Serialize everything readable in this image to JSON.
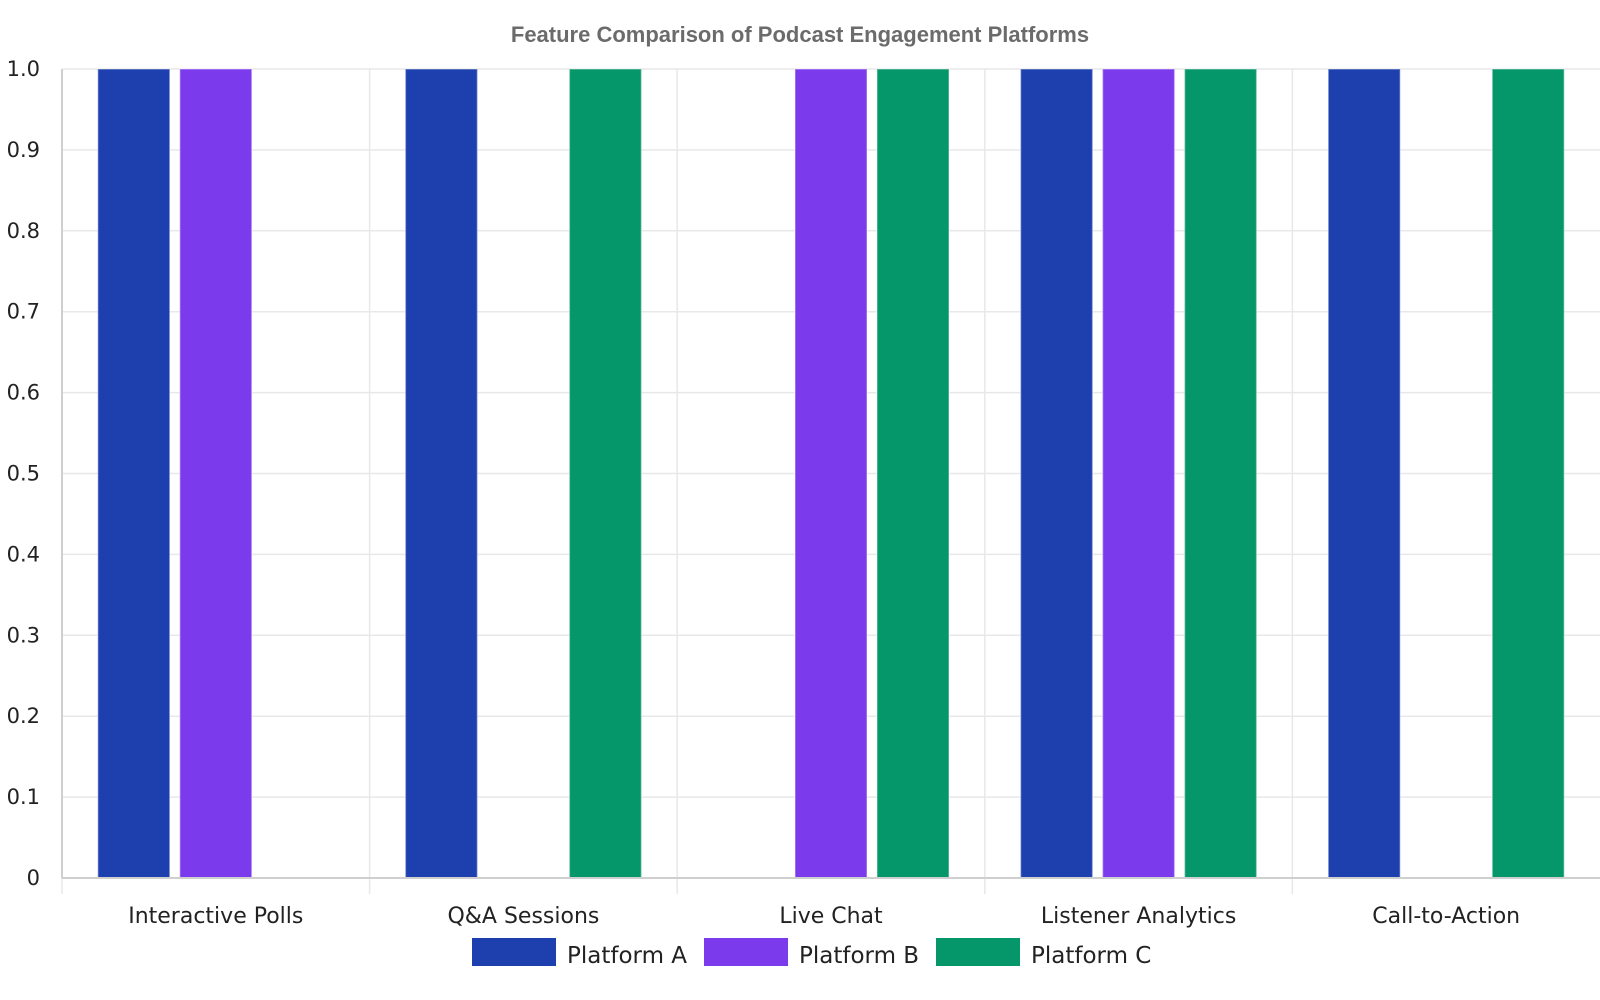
{
  "chart_data": {
    "type": "bar",
    "title": "Feature Comparison of Podcast Engagement Platforms",
    "xlabel": "",
    "ylabel": "",
    "ylim": [
      0,
      1
    ],
    "yticks": [
      "0",
      "0.1",
      "0.2",
      "0.3",
      "0.4",
      "0.5",
      "0.6",
      "0.7",
      "0.8",
      "0.9",
      "1.0"
    ],
    "grid": true,
    "legend_position": "bottom",
    "categories": [
      "Interactive Polls",
      "Q&A Sessions",
      "Live Chat",
      "Listener Analytics",
      "Call-to-Action"
    ],
    "series": [
      {
        "name": "Platform A",
        "color": "#1e40af",
        "values": [
          1,
          1,
          0,
          1,
          1
        ]
      },
      {
        "name": "Platform B",
        "color": "#7c3aed",
        "values": [
          1,
          0,
          1,
          1,
          0
        ]
      },
      {
        "name": "Platform C",
        "color": "#059669",
        "values": [
          0,
          1,
          1,
          1,
          1
        ]
      }
    ]
  }
}
